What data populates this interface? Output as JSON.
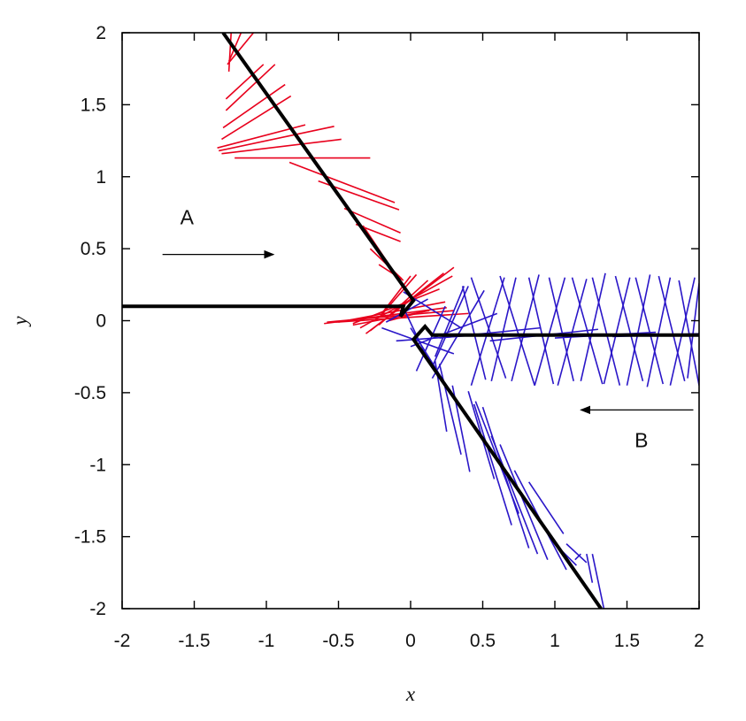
{
  "chart_data": {
    "type": "line",
    "title": "",
    "xlabel": "x",
    "ylabel": "y",
    "xlim": [
      -2,
      2
    ],
    "ylim": [
      -2,
      2
    ],
    "x_ticks": [
      "-2",
      "-1.5",
      "-1",
      "-0.5",
      "0",
      "0.5",
      "1",
      "1.5",
      "2"
    ],
    "y_ticks": [
      "-2",
      "-1.5",
      "-1",
      "-0.5",
      "0",
      "0.5",
      "1",
      "1.5",
      "2"
    ],
    "grid": false,
    "colors": {
      "A": "#e8001c",
      "B": "#2a16c8",
      "trajectory": "#000000"
    },
    "annotations": [
      {
        "label": "A",
        "text_at": [
          -1.55,
          0.67
        ],
        "arrow_from": [
          -1.72,
          0.46
        ],
        "arrow_to": [
          -0.95,
          0.46
        ]
      },
      {
        "label": "B",
        "text_at": [
          1.6,
          -0.88
        ],
        "arrow_from": [
          1.96,
          -0.62
        ],
        "arrow_to": [
          1.18,
          -0.62
        ]
      }
    ],
    "series": [
      {
        "color": "#000000",
        "points": [
          [
            -2,
            0.1
          ],
          [
            -0.05,
            0.1
          ],
          [
            -0.07,
            0.03
          ],
          [
            0.02,
            0.14
          ],
          [
            -1.3,
            2.0
          ]
        ]
      },
      {
        "color": "#000000",
        "points": [
          [
            2,
            -0.1
          ],
          [
            0.15,
            -0.1
          ],
          [
            0.1,
            -0.04
          ],
          [
            0.02,
            -0.13
          ],
          [
            1.32,
            -2.0
          ]
        ]
      }
    ],
    "rods_A": [
      [
        -1.24,
        2.07,
        -1.26,
        1.73
      ],
      [
        -1.15,
        2.06,
        -1.26,
        1.8
      ],
      [
        -1.04,
        2.06,
        -1.27,
        1.78
      ],
      [
        -1.02,
        1.78,
        -1.28,
        1.54
      ],
      [
        -0.94,
        1.78,
        -1.28,
        1.46
      ],
      [
        -0.87,
        1.64,
        -1.3,
        1.34
      ],
      [
        -0.83,
        1.56,
        -1.31,
        1.26
      ],
      [
        -0.73,
        1.36,
        -1.34,
        1.2
      ],
      [
        -0.53,
        1.35,
        -1.33,
        1.18
      ],
      [
        -0.48,
        1.26,
        -1.31,
        1.16
      ],
      [
        -0.28,
        1.13,
        -1.22,
        1.13
      ],
      [
        -0.11,
        0.82,
        -0.84,
        1.1
      ],
      [
        -0.08,
        0.77,
        -0.64,
        0.97
      ],
      [
        -0.07,
        0.61,
        -0.46,
        0.78
      ],
      [
        -0.07,
        0.55,
        -0.38,
        0.67
      ],
      [
        -0.11,
        0.33,
        -0.33,
        0.66
      ],
      [
        -0.06,
        0.29,
        -0.28,
        0.5
      ],
      [
        -0.05,
        0.28,
        -0.22,
        0.39
      ],
      [
        0.0,
        0.31,
        -0.2,
        0.05
      ],
      [
        0.04,
        0.32,
        -0.22,
        0.02
      ],
      [
        0.12,
        0.28,
        -0.22,
        -0.03
      ],
      [
        0.23,
        0.33,
        -0.28,
        -0.07
      ],
      [
        0.3,
        0.37,
        -0.31,
        -0.09
      ],
      [
        0.29,
        0.31,
        -0.35,
        -0.05
      ],
      [
        0.2,
        0.22,
        -0.4,
        -0.02
      ],
      [
        0.24,
        0.13,
        -0.5,
        -0.01
      ],
      [
        0.4,
        0.05,
        -0.52,
        -0.01
      ],
      [
        0.3,
        0.07,
        -0.58,
        -0.01
      ],
      [
        0.25,
        0.09,
        -0.6,
        -0.02
      ],
      [
        0.13,
        0.07,
        -0.4,
        -0.03
      ],
      [
        0.04,
        0.05,
        -0.15,
        0.0
      ],
      [
        -0.05,
        0.09,
        -0.26,
        0.1
      ]
    ],
    "rods_B": [
      [
        -0.17,
        -0.01,
        0.12,
        0.15
      ],
      [
        -0.04,
        0.07,
        0.12,
        -0.27
      ],
      [
        0.04,
        -0.35,
        0.24,
        0.1
      ],
      [
        -0.05,
        0.2,
        0.35,
        -0.05
      ],
      [
        0.0,
        -0.05,
        0.26,
        -0.47
      ],
      [
        0.17,
        -0.25,
        0.37,
        0.24
      ],
      [
        0.4,
        0.24,
        0.15,
        -0.32
      ],
      [
        0.51,
        0.21,
        0.15,
        -0.4
      ],
      [
        0.52,
        -0.41,
        0.36,
        0.24
      ],
      [
        0.65,
        0.3,
        0.42,
        -0.45
      ],
      [
        0.66,
        -0.4,
        0.42,
        0.3
      ],
      [
        0.73,
        0.3,
        0.56,
        -0.42
      ],
      [
        0.86,
        -0.45,
        0.62,
        0.31
      ],
      [
        0.89,
        0.32,
        0.7,
        -0.42
      ],
      [
        0.99,
        -0.44,
        0.82,
        0.3
      ],
      [
        1.07,
        0.3,
        0.86,
        -0.45
      ],
      [
        1.13,
        -0.42,
        0.96,
        0.3
      ],
      [
        1.22,
        0.29,
        1.02,
        -0.45
      ],
      [
        1.33,
        -0.44,
        1.12,
        0.3
      ],
      [
        1.35,
        0.33,
        1.18,
        -0.42
      ],
      [
        1.45,
        -0.45,
        1.26,
        0.3
      ],
      [
        1.52,
        0.3,
        1.34,
        -0.44
      ],
      [
        1.61,
        -0.42,
        1.42,
        0.31
      ],
      [
        1.66,
        0.32,
        1.5,
        -0.45
      ],
      [
        1.75,
        -0.44,
        1.56,
        0.3
      ],
      [
        1.8,
        0.3,
        1.64,
        -0.46
      ],
      [
        1.9,
        -0.42,
        1.72,
        0.31
      ],
      [
        1.97,
        0.3,
        1.8,
        -0.45
      ],
      [
        2.0,
        -0.45,
        1.86,
        0.28
      ],
      [
        2.0,
        0.26,
        1.92,
        -0.4
      ],
      [
        0.3,
        -0.23,
        -0.2,
        -0.05
      ],
      [
        0.45,
        -0.1,
        -0.1,
        -0.14
      ],
      [
        0.6,
        0.05,
        0.0,
        -0.18
      ],
      [
        0.9,
        -0.05,
        0.2,
        -0.12
      ],
      [
        1.3,
        -0.06,
        0.55,
        -0.14
      ],
      [
        1.7,
        -0.08,
        1.0,
        -0.12
      ],
      [
        2.0,
        -0.09,
        1.4,
        -0.11
      ],
      [
        0.17,
        -0.28,
        0.25,
        -0.77
      ],
      [
        0.2,
        -0.3,
        0.35,
        -0.93
      ],
      [
        0.29,
        -0.45,
        0.41,
        -1.05
      ],
      [
        0.4,
        -0.49,
        0.58,
        -1.1
      ],
      [
        0.45,
        -0.56,
        0.75,
        -1.34
      ],
      [
        0.44,
        -0.58,
        0.7,
        -1.42
      ],
      [
        0.5,
        -0.6,
        0.82,
        -1.58
      ],
      [
        0.56,
        -0.8,
        0.88,
        -1.62
      ],
      [
        0.62,
        -0.86,
        0.95,
        -1.66
      ],
      [
        0.72,
        -1.04,
        1.08,
        -1.73
      ],
      [
        0.82,
        -1.12,
        1.06,
        -1.48
      ],
      [
        1.03,
        -1.58,
        1.15,
        -1.7
      ],
      [
        1.08,
        -1.55,
        1.22,
        -1.68
      ],
      [
        1.18,
        -1.62,
        1.14,
        -1.66
      ],
      [
        1.22,
        -1.62,
        1.26,
        -1.82
      ],
      [
        1.26,
        -1.62,
        1.34,
        -2.0
      ]
    ]
  }
}
